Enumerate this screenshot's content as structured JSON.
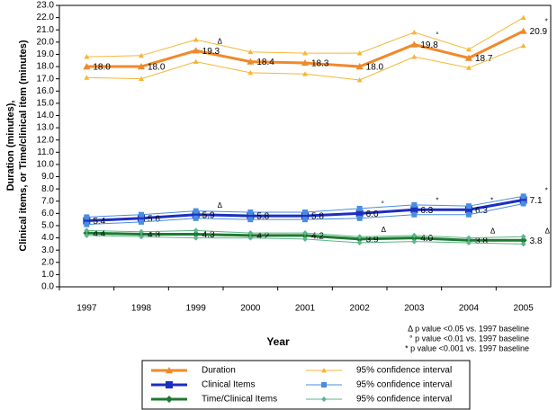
{
  "chart_data": {
    "type": "line",
    "categories": [
      "1997",
      "1998",
      "1999",
      "2000",
      "2001",
      "2002",
      "2003",
      "2004",
      "2005"
    ],
    "x_label": "Year",
    "y_label": [
      "Duration (minutes),",
      "Clinical items, or Time/clinical item (minutes)"
    ],
    "ylim": [
      0,
      23
    ],
    "yticks": [
      {
        "value": 0,
        "label": "0.0"
      },
      {
        "value": 1,
        "label": "1.0"
      },
      {
        "value": 2,
        "label": "2.0"
      },
      {
        "value": 3,
        "label": "3.0"
      },
      {
        "value": 4,
        "label": "4.0"
      },
      {
        "value": 5,
        "label": "5.0"
      },
      {
        "value": 6,
        "label": "6.0"
      },
      {
        "value": 7,
        "label": "7.0"
      },
      {
        "value": 8,
        "label": "8.0"
      },
      {
        "value": 9,
        "label": "9.0"
      },
      {
        "value": 10,
        "label": "10.0"
      },
      {
        "value": 11,
        "label": "11.0"
      },
      {
        "value": 12,
        "label": "12.0"
      },
      {
        "value": 13,
        "label": "13.0"
      },
      {
        "value": 14,
        "label": "14.0"
      },
      {
        "value": 15,
        "label": "15.0"
      },
      {
        "value": 16,
        "label": "16.0"
      },
      {
        "value": 17,
        "label": "17.0"
      },
      {
        "value": 18,
        "label": "18.0"
      },
      {
        "value": 19,
        "label": "19.0"
      },
      {
        "value": 20,
        "label": "20.0"
      },
      {
        "value": 21,
        "label": "21.0"
      },
      {
        "value": 22,
        "label": "22.0"
      },
      {
        "value": 23,
        "label": "23.0"
      }
    ],
    "series": [
      {
        "name": "Duration",
        "color": "#f0892a",
        "marker": "triangle",
        "values": [
          18.0,
          18.0,
          19.3,
          18.4,
          18.3,
          18.0,
          19.8,
          18.7,
          20.9
        ],
        "value_labels": [
          "18.0",
          "18.0",
          "19.3",
          "18.4",
          "18.3",
          "18.0",
          "19.8",
          "18.7",
          "20.9"
        ],
        "significance": [
          null,
          null,
          "Δ",
          null,
          null,
          null,
          "°",
          null,
          "*"
        ]
      },
      {
        "name": "95% confidence interval",
        "color": "#f5b634",
        "marker": "triangle",
        "upper": [
          18.8,
          18.9,
          20.2,
          19.2,
          19.1,
          19.1,
          20.8,
          19.4,
          22.0
        ],
        "lower": [
          17.1,
          17.0,
          18.4,
          17.5,
          17.4,
          16.9,
          18.8,
          17.9,
          19.7
        ]
      },
      {
        "name": "Clinical Items",
        "color": "#1c2fbf",
        "marker": "square",
        "values": [
          5.4,
          5.6,
          5.9,
          5.8,
          5.8,
          6.0,
          6.3,
          6.3,
          7.1
        ],
        "value_labels": [
          "5.4",
          "5.6",
          "5.9",
          "5.8",
          "5.8",
          "6.0",
          "6.3",
          "6.3",
          "7.1"
        ],
        "significance": [
          null,
          null,
          "Δ",
          null,
          null,
          "°",
          "*",
          "*",
          "*"
        ]
      },
      {
        "name": "95% confidence interval",
        "color": "#4a8de0",
        "marker": "square",
        "upper": [
          5.7,
          5.9,
          6.2,
          6.1,
          6.1,
          6.4,
          6.7,
          6.6,
          7.4
        ],
        "lower": [
          5.1,
          5.3,
          5.6,
          5.5,
          5.5,
          5.6,
          5.9,
          5.9,
          6.8
        ]
      },
      {
        "name": "Time/Clinical Items",
        "color": "#1d7a30",
        "marker": "diamond",
        "values": [
          4.4,
          4.3,
          4.3,
          4.2,
          4.2,
          3.9,
          4.0,
          3.8,
          3.8
        ],
        "value_labels": [
          "4.4",
          "4.3",
          "4.3",
          "4.2",
          "4.2",
          "3.9",
          "4.0",
          "3.8",
          "3.8"
        ],
        "significance": [
          null,
          null,
          null,
          null,
          null,
          "Δ",
          null,
          "Δ",
          "Δ"
        ]
      },
      {
        "name": "95% confidence interval",
        "color": "#5cb58a",
        "marker": "diamond",
        "upper": [
          4.6,
          4.5,
          4.6,
          4.4,
          4.4,
          4.1,
          4.2,
          4.0,
          4.1
        ],
        "lower": [
          4.2,
          4.1,
          4.0,
          4.0,
          3.9,
          3.6,
          3.7,
          3.6,
          3.5
        ]
      }
    ],
    "footnotes": [
      "Δ p value <0.05 vs. 1997 baseline",
      "° p value <0.01 vs. 1997 baseline",
      "* p value <0.001 vs. 1997 baseline"
    ]
  }
}
